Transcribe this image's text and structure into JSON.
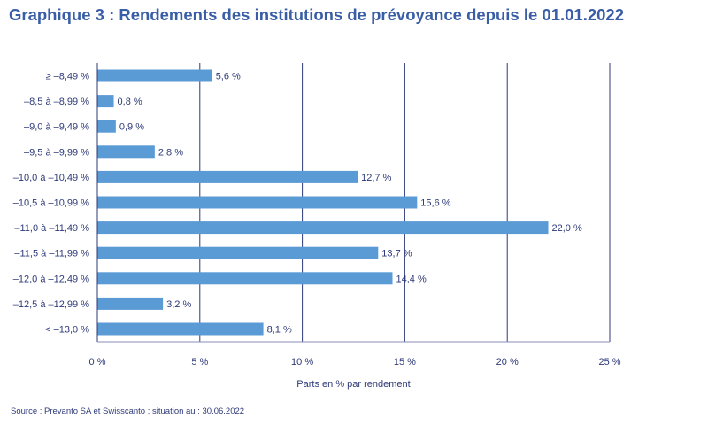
{
  "chart_data": {
    "type": "bar",
    "orientation": "horizontal",
    "title": "Graphique 3 : Rendements des institutions de prévoyance depuis le 01.01.2022",
    "xlabel": "Parts en % par rendement",
    "ylabel": "",
    "xlim": [
      0,
      25
    ],
    "ticks": [
      0,
      5,
      10,
      15,
      20,
      25
    ],
    "tick_labels": [
      "0 %",
      "5 %",
      "10 %",
      "15 %",
      "20 %",
      "25 %"
    ],
    "categories": [
      "≥ –8,49 %",
      "–8,5 à –8,99 %",
      "–9,0 à –9,49 %",
      "–9,5 à –9,99 %",
      "–10,0 à –10,49 %",
      "–10,5 à –10,99 %",
      "–11,0 à –11,49 %",
      "–11,5 à –11,99 %",
      "–12,0 à –12,49 %",
      "–12,5 à –12,99 %",
      "< –13,0 %"
    ],
    "values": [
      5.6,
      0.8,
      0.9,
      2.8,
      12.7,
      15.6,
      22.0,
      13.7,
      14.4,
      3.2,
      8.1
    ],
    "value_labels": [
      "5,6 %",
      "0,8 %",
      "0,9 %",
      "2,8 %",
      "12,7 %",
      "15,6 %",
      "22,0 %",
      "13,7 %",
      "14,4 %",
      "3,2 %",
      "8,1 %"
    ],
    "grid": true,
    "colors": {
      "bar": "#5b9bd5",
      "grid": "#2e3a78",
      "text": "#2e3a78",
      "title": "#3a5ea6"
    }
  },
  "source": "Source : Prevanto SA et Swisscanto ; situation au : 30.06.2022"
}
